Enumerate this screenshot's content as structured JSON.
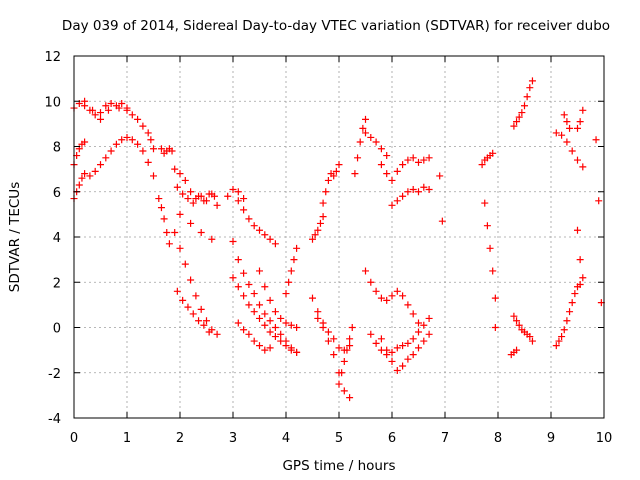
{
  "chart_data": {
    "type": "scatter",
    "title": "Day 039 of 2014, Sidereal Day-to-day VTEC variation (SDTVAR) for receiver dubo",
    "xlabel": "GPS time / hours",
    "ylabel": "SDTVAR / TECUs",
    "xlim": [
      0,
      10
    ],
    "ylim": [
      -4,
      12
    ],
    "xticks": [
      "0",
      "1",
      "2",
      "3",
      "4",
      "5",
      "6",
      "7",
      "8",
      "9",
      "10"
    ],
    "yticks": [
      "-4",
      "-2",
      "0",
      "2",
      "4",
      "6",
      "8",
      "10",
      "12"
    ],
    "grid": true,
    "marker": "plus",
    "color": "#ff0000",
    "series": [
      {
        "x": [
          0.0,
          0.1,
          0.2,
          0.35,
          0.5,
          0.65,
          0.8,
          0.9,
          1.0,
          1.1,
          1.2,
          1.3,
          1.4,
          1.45,
          1.5
        ],
        "values": [
          9.7,
          9.9,
          10.0,
          9.6,
          9.2,
          9.6,
          9.8,
          9.9,
          9.7,
          9.4,
          9.2,
          8.9,
          8.6,
          8.3,
          7.9
        ]
      },
      {
        "x": [
          0.2,
          0.3,
          0.4,
          0.5,
          0.6,
          0.7,
          0.85,
          1.0
        ],
        "values": [
          9.8,
          9.6,
          9.4,
          9.5,
          9.8,
          9.9,
          9.7,
          9.6
        ]
      },
      {
        "x": [
          0.0,
          0.05,
          0.1,
          0.15,
          0.2
        ],
        "values": [
          7.2,
          7.6,
          7.9,
          8.1,
          8.2
        ]
      },
      {
        "x": [
          0.0,
          0.05,
          0.1,
          0.15,
          0.2,
          0.3,
          0.4,
          0.5,
          0.6,
          0.7,
          0.8,
          0.9,
          1.0,
          1.1,
          1.2,
          1.3,
          1.4,
          1.5
        ],
        "values": [
          5.7,
          6.0,
          6.3,
          6.6,
          6.8,
          6.7,
          6.9,
          7.2,
          7.5,
          7.8,
          8.1,
          8.3,
          8.4,
          8.3,
          8.1,
          7.8,
          7.3,
          6.7
        ]
      },
      {
        "x": [
          1.65,
          1.7,
          1.75,
          1.8,
          1.85
        ],
        "values": [
          7.9,
          7.7,
          7.8,
          7.9,
          7.8
        ]
      },
      {
        "x": [
          1.6,
          1.65,
          1.7,
          1.75,
          1.8
        ],
        "values": [
          5.7,
          5.3,
          4.8,
          4.2,
          3.7
        ]
      },
      {
        "x": [
          1.9,
          2.0,
          2.1,
          2.2,
          2.3,
          2.4,
          2.5,
          2.6,
          2.7
        ],
        "values": [
          7.0,
          6.8,
          6.5,
          6.0,
          5.7,
          5.8,
          5.6,
          5.9,
          5.4
        ]
      },
      {
        "x": [
          1.95,
          2.05,
          2.15,
          2.25,
          2.35,
          2.45,
          2.55,
          2.65
        ],
        "values": [
          6.2,
          5.9,
          5.7,
          5.5,
          5.8,
          5.6,
          5.9,
          5.8
        ]
      },
      {
        "x": [
          2.0,
          2.2,
          2.4,
          2.6
        ],
        "values": [
          5.0,
          4.6,
          4.2,
          3.9
        ]
      },
      {
        "x": [
          1.9,
          2.0,
          2.1,
          2.2,
          2.3,
          2.4,
          2.5,
          2.6,
          2.7
        ],
        "values": [
          4.2,
          3.5,
          2.8,
          2.1,
          1.4,
          0.8,
          0.3,
          -0.1,
          -0.3
        ]
      },
      {
        "x": [
          1.95,
          2.05,
          2.15,
          2.25,
          2.35,
          2.45,
          2.55
        ],
        "values": [
          1.6,
          1.2,
          0.9,
          0.6,
          0.3,
          0.1,
          -0.2
        ]
      },
      {
        "x": [
          2.9,
          3.0,
          3.1,
          3.2
        ],
        "values": [
          5.8,
          6.1,
          6.0,
          5.7
        ]
      },
      {
        "x": [
          3.1,
          3.2,
          3.3,
          3.4,
          3.5,
          3.6,
          3.7,
          3.8
        ],
        "values": [
          5.6,
          5.2,
          4.8,
          4.5,
          4.3,
          4.1,
          3.9,
          3.7
        ]
      },
      {
        "x": [
          3.0,
          3.1,
          3.2,
          3.3,
          3.4,
          3.5,
          3.6,
          3.7,
          3.8,
          3.9,
          4.0,
          4.1,
          4.2
        ],
        "values": [
          3.8,
          3.0,
          2.4,
          1.9,
          1.5,
          1.0,
          0.6,
          0.3,
          0.0,
          -0.3,
          -0.6,
          -0.9,
          -1.1
        ]
      },
      {
        "x": [
          3.0,
          3.1,
          3.2,
          3.3,
          3.4,
          3.5,
          3.6,
          3.7,
          3.8,
          3.9,
          4.0,
          4.1,
          4.2
        ],
        "values": [
          2.2,
          1.8,
          1.4,
          1.0,
          0.7,
          0.4,
          0.1,
          -0.2,
          -0.4,
          -0.6,
          -0.8,
          -1.0,
          -1.1
        ]
      },
      {
        "x": [
          3.5,
          3.6,
          3.7,
          3.8,
          3.9,
          4.0,
          4.1,
          4.2
        ],
        "values": [
          2.5,
          1.8,
          1.2,
          0.7,
          0.4,
          0.2,
          0.1,
          0.0
        ]
      },
      {
        "x": [
          3.1,
          3.2,
          3.3,
          3.4,
          3.5,
          3.6,
          3.7
        ],
        "values": [
          0.2,
          -0.1,
          -0.3,
          -0.6,
          -0.8,
          -1.0,
          -0.9
        ]
      },
      {
        "x": [
          4.0,
          4.05,
          4.1,
          4.15,
          4.2
        ],
        "values": [
          1.5,
          2.0,
          2.5,
          3.0,
          3.5
        ]
      },
      {
        "x": [
          4.5,
          4.55,
          4.6,
          4.65,
          4.7
        ],
        "values": [
          3.9,
          4.1,
          4.3,
          4.6,
          4.9
        ]
      },
      {
        "x": [
          4.7,
          4.75,
          4.8,
          4.85,
          4.9,
          4.95,
          5.0
        ],
        "values": [
          5.5,
          6.0,
          6.5,
          6.8,
          6.7,
          6.9,
          7.2
        ]
      },
      {
        "x": [
          4.5,
          4.6,
          4.7,
          4.8,
          4.9,
          5.0,
          5.1,
          5.2
        ],
        "values": [
          1.3,
          0.7,
          0.2,
          -0.2,
          -0.5,
          -0.9,
          -1.0,
          -0.8
        ]
      },
      {
        "x": [
          4.6,
          4.7,
          4.8,
          4.9,
          5.0,
          5.1,
          5.2
        ],
        "values": [
          0.4,
          0.0,
          -0.6,
          -1.2,
          -2.0,
          -2.8,
          -3.1
        ]
      },
      {
        "x": [
          5.0,
          5.05,
          5.1,
          5.15,
          5.2,
          5.25
        ],
        "values": [
          -2.5,
          -2.0,
          -1.5,
          -1.0,
          -0.5,
          0.0
        ]
      },
      {
        "x": [
          5.3,
          5.35,
          5.4,
          5.45,
          5.5
        ],
        "values": [
          6.8,
          7.5,
          8.2,
          8.8,
          9.2
        ]
      },
      {
        "x": [
          5.5,
          5.6,
          5.7,
          5.8,
          5.9
        ],
        "values": [
          8.6,
          8.4,
          8.2,
          7.9,
          7.6
        ]
      },
      {
        "x": [
          5.5,
          5.6,
          5.7,
          5.8,
          5.9,
          6.0,
          6.1,
          6.2,
          6.3,
          6.4,
          6.5
        ],
        "values": [
          2.5,
          2.0,
          1.6,
          1.3,
          1.2,
          1.4,
          1.6,
          1.4,
          1.0,
          0.6,
          0.2
        ]
      },
      {
        "x": [
          5.8,
          5.9,
          6.0,
          6.1,
          6.2,
          6.3,
          6.4,
          6.5,
          6.6,
          6.7
        ],
        "values": [
          7.2,
          6.8,
          6.5,
          6.9,
          7.2,
          7.4,
          7.5,
          7.3,
          7.4,
          7.5
        ]
      },
      {
        "x": [
          6.0,
          6.1,
          6.2,
          6.3,
          6.4,
          6.5,
          6.6,
          6.7
        ],
        "values": [
          5.4,
          5.6,
          5.8,
          6.0,
          6.1,
          6.0,
          6.2,
          6.1
        ]
      },
      {
        "x": [
          5.8,
          5.9,
          6.0,
          6.1,
          6.2,
          6.3,
          6.4,
          6.5,
          6.6,
          6.7
        ],
        "values": [
          -0.5,
          -1.0,
          -1.5,
          -1.9,
          -1.7,
          -1.4,
          -1.2,
          -0.9,
          -0.6,
          -0.3
        ]
      },
      {
        "x": [
          5.6,
          5.7,
          5.8,
          5.9,
          6.0,
          6.1,
          6.2,
          6.3,
          6.4,
          6.5,
          6.6,
          6.7
        ],
        "values": [
          -0.3,
          -0.7,
          -1.0,
          -1.2,
          -1.1,
          -0.9,
          -0.8,
          -0.7,
          -0.5,
          -0.2,
          0.1,
          0.4
        ]
      },
      {
        "x": [
          6.9,
          6.95
        ],
        "values": [
          6.7,
          4.7
        ]
      },
      {
        "x": [
          7.7,
          7.75,
          7.8,
          7.85,
          7.9
        ],
        "values": [
          7.2,
          7.4,
          7.5,
          7.6,
          7.7
        ]
      },
      {
        "x": [
          7.75,
          7.8,
          7.85,
          7.9,
          7.95
        ],
        "values": [
          5.5,
          4.5,
          3.5,
          2.5,
          1.3
        ]
      },
      {
        "x": [
          7.95
        ],
        "values": [
          0.0
        ]
      },
      {
        "x": [
          8.3,
          8.35,
          8.4,
          8.45,
          8.5,
          8.55,
          8.6,
          8.65
        ],
        "values": [
          8.9,
          9.1,
          9.3,
          9.5,
          9.8,
          10.2,
          10.6,
          10.9
        ]
      },
      {
        "x": [
          8.3,
          8.35,
          8.4,
          8.45,
          8.5,
          8.55,
          8.6,
          8.65
        ],
        "values": [
          0.5,
          0.3,
          0.1,
          -0.1,
          -0.2,
          -0.3,
          -0.4,
          -0.6
        ]
      },
      {
        "x": [
          8.25,
          8.3,
          8.35
        ],
        "values": [
          -1.2,
          -1.1,
          -1.0
        ]
      },
      {
        "x": [
          9.1,
          9.2,
          9.3,
          9.4,
          9.5,
          9.6
        ],
        "values": [
          8.6,
          8.5,
          8.2,
          7.8,
          7.4,
          7.1
        ]
      },
      {
        "x": [
          9.25,
          9.3,
          9.35
        ],
        "values": [
          9.4,
          9.1,
          8.8
        ]
      },
      {
        "x": [
          9.5,
          9.55,
          9.6
        ],
        "values": [
          8.8,
          9.1,
          9.6
        ]
      },
      {
        "x": [
          9.1,
          9.15,
          9.2,
          9.25,
          9.3,
          9.35,
          9.4,
          9.45,
          9.5,
          9.55
        ],
        "values": [
          -0.8,
          -0.6,
          -0.4,
          -0.1,
          0.3,
          0.7,
          1.1,
          1.5,
          1.8,
          1.9
        ]
      },
      {
        "x": [
          9.5,
          9.55,
          9.6
        ],
        "values": [
          4.3,
          3.0,
          2.2
        ]
      },
      {
        "x": [
          9.85,
          9.9,
          9.95
        ],
        "values": [
          8.3,
          5.6,
          1.1
        ]
      }
    ]
  }
}
